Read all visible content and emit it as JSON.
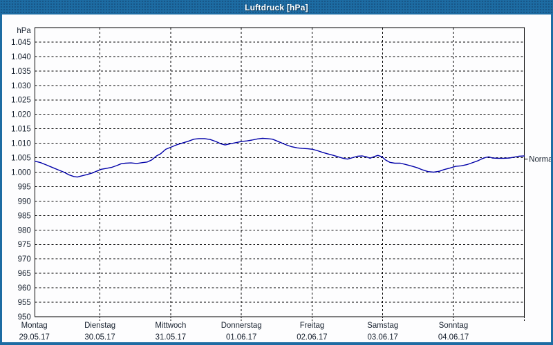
{
  "window": {
    "title": "Luftdruck [hPa]"
  },
  "colors": {
    "titlebar": "#1d6ca3",
    "titlebar_dots": "#174f7e",
    "frame_border": "#1d6ca3",
    "plot_bg": "#fdfdfe",
    "grid": "#000000",
    "axis": "#000000",
    "text": "#141e2c",
    "curve": "#0000a8",
    "title_text": "#ffffff"
  },
  "chart_data": {
    "type": "line",
    "title": "Luftdruck [hPa]",
    "ylabel": "hPa",
    "unit_label": "hPa",
    "ylim": [
      950,
      1050
    ],
    "y_tick_step": 5,
    "grid": true,
    "grid_style": "dashed",
    "y_ticks": [
      {
        "label": "1.045",
        "value": 1045
      },
      {
        "label": "1.040",
        "value": 1040
      },
      {
        "label": "1.035",
        "value": 1035
      },
      {
        "label": "1.030",
        "value": 1030
      },
      {
        "label": "1.025",
        "value": 1025
      },
      {
        "label": "1.020",
        "value": 1020
      },
      {
        "label": "1.015",
        "value": 1015
      },
      {
        "label": "1.010",
        "value": 1010
      },
      {
        "label": "1.005",
        "value": 1005
      },
      {
        "label": "1.000",
        "value": 1000
      },
      {
        "label": "995",
        "value": 995
      },
      {
        "label": "990",
        "value": 990
      },
      {
        "label": "985",
        "value": 985
      },
      {
        "label": "980",
        "value": 980
      },
      {
        "label": "975",
        "value": 975
      },
      {
        "label": "970",
        "value": 970
      },
      {
        "label": "965",
        "value": 965
      },
      {
        "label": "960",
        "value": 960
      },
      {
        "label": "955",
        "value": 955
      },
      {
        "label": "950",
        "value": 950
      }
    ],
    "x_days": [
      {
        "day": "Montag",
        "date": "29.05.17"
      },
      {
        "day": "Dienstag",
        "date": "30.05.17"
      },
      {
        "day": "Mittwoch",
        "date": "31.05.17"
      },
      {
        "day": "Donnerstag",
        "date": "01.06.17"
      },
      {
        "day": "Freitag",
        "date": "02.06.17"
      },
      {
        "day": "Samstag",
        "date": "03.06.17"
      },
      {
        "day": "Sonntag",
        "date": "04.06.17"
      }
    ],
    "normal_marker": {
      "label": "Normal",
      "value": 1004.5
    },
    "series": [
      {
        "name": "Luftdruck",
        "points": [
          [
            0.08,
            1003.8
          ],
          [
            0.16,
            1003.3
          ],
          [
            0.25,
            1002.4
          ],
          [
            0.33,
            1001.6
          ],
          [
            0.42,
            1000.7
          ],
          [
            0.49,
            1000.0
          ],
          [
            0.56,
            999.1
          ],
          [
            0.63,
            998.5
          ],
          [
            0.68,
            998.3
          ],
          [
            0.74,
            998.7
          ],
          [
            0.82,
            999.2
          ],
          [
            0.89,
            999.7
          ],
          [
            0.96,
            1000.4
          ],
          [
            1.02,
            1001.0
          ],
          [
            1.09,
            1001.3
          ],
          [
            1.17,
            1001.7
          ],
          [
            1.24,
            1002.3
          ],
          [
            1.3,
            1002.9
          ],
          [
            1.36,
            1003.1
          ],
          [
            1.44,
            1003.2
          ],
          [
            1.52,
            1003.0
          ],
          [
            1.6,
            1003.3
          ],
          [
            1.67,
            1003.5
          ],
          [
            1.73,
            1004.2
          ],
          [
            1.8,
            1005.6
          ],
          [
            1.86,
            1006.4
          ],
          [
            1.93,
            1007.9
          ],
          [
            2.02,
            1008.8
          ],
          [
            2.09,
            1009.5
          ],
          [
            2.17,
            1010.1
          ],
          [
            2.25,
            1010.7
          ],
          [
            2.33,
            1011.4
          ],
          [
            2.4,
            1011.6
          ],
          [
            2.48,
            1011.6
          ],
          [
            2.56,
            1011.3
          ],
          [
            2.64,
            1010.6
          ],
          [
            2.71,
            1009.8
          ],
          [
            2.77,
            1009.4
          ],
          [
            2.84,
            1009.8
          ],
          [
            2.92,
            1010.2
          ],
          [
            3.0,
            1010.6
          ],
          [
            3.08,
            1010.8
          ],
          [
            3.15,
            1011.1
          ],
          [
            3.23,
            1011.5
          ],
          [
            3.3,
            1011.7
          ],
          [
            3.37,
            1011.6
          ],
          [
            3.44,
            1011.4
          ],
          [
            3.5,
            1010.8
          ],
          [
            3.57,
            1010.1
          ],
          [
            3.64,
            1009.4
          ],
          [
            3.71,
            1008.8
          ],
          [
            3.79,
            1008.4
          ],
          [
            3.86,
            1008.2
          ],
          [
            3.94,
            1008.1
          ],
          [
            4.01,
            1007.9
          ],
          [
            4.08,
            1007.4
          ],
          [
            4.14,
            1006.9
          ],
          [
            4.21,
            1006.4
          ],
          [
            4.29,
            1005.9
          ],
          [
            4.37,
            1005.3
          ],
          [
            4.44,
            1004.8
          ],
          [
            4.5,
            1004.5
          ],
          [
            4.57,
            1005.0
          ],
          [
            4.64,
            1005.5
          ],
          [
            4.71,
            1005.6
          ],
          [
            4.77,
            1005.3
          ],
          [
            4.82,
            1004.8
          ],
          [
            4.88,
            1005.4
          ],
          [
            4.93,
            1005.8
          ],
          [
            4.99,
            1005.3
          ],
          [
            5.04,
            1004.2
          ],
          [
            5.1,
            1003.4
          ],
          [
            5.17,
            1003.1
          ],
          [
            5.25,
            1003.1
          ],
          [
            5.33,
            1002.6
          ],
          [
            5.41,
            1002.1
          ],
          [
            5.49,
            1001.5
          ],
          [
            5.56,
            1000.8
          ],
          [
            5.64,
            1000.2
          ],
          [
            5.72,
            1000.0
          ],
          [
            5.8,
            1000.3
          ],
          [
            5.87,
            1000.9
          ],
          [
            5.95,
            1001.4
          ],
          [
            6.03,
            1002.0
          ],
          [
            6.11,
            1002.2
          ],
          [
            6.19,
            1002.6
          ],
          [
            6.26,
            1003.2
          ],
          [
            6.34,
            1003.9
          ],
          [
            6.4,
            1004.6
          ],
          [
            6.46,
            1005.1
          ],
          [
            6.5,
            1005.3
          ],
          [
            6.55,
            1004.9
          ],
          [
            6.63,
            1004.8
          ],
          [
            6.71,
            1004.8
          ],
          [
            6.79,
            1004.9
          ],
          [
            6.86,
            1005.2
          ],
          [
            6.92,
            1005.5
          ],
          [
            7.0,
            1005.6
          ]
        ]
      }
    ]
  }
}
